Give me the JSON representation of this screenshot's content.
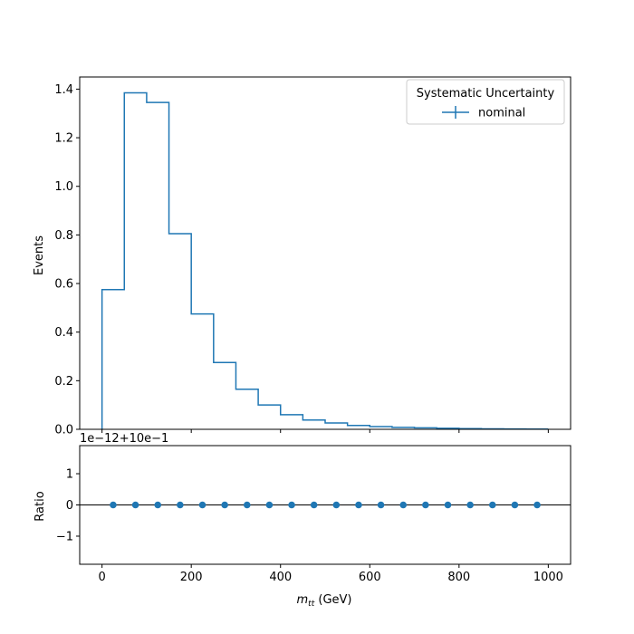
{
  "chart_data": [
    {
      "type": "line",
      "subtype": "step-histogram",
      "ylabel": "Events",
      "xlim": [
        -50,
        1050
      ],
      "ylim": [
        0,
        1.45
      ],
      "x_ticks": [
        0,
        200,
        400,
        600,
        800,
        1000
      ],
      "y_ticks": [
        0.0,
        0.2,
        0.4,
        0.6,
        0.8,
        1.0,
        1.2,
        1.4
      ],
      "y_tick_labels": [
        "0.0",
        "0.2",
        "0.4",
        "0.6",
        "0.8",
        "1.0",
        "1.2",
        "1.4"
      ],
      "bin_edges": [
        0,
        50,
        100,
        150,
        200,
        250,
        300,
        350,
        400,
        450,
        500,
        550,
        600,
        650,
        700,
        750,
        800,
        850,
        900,
        950,
        1000
      ],
      "series": [
        {
          "name": "nominal",
          "color": "#1f77b4",
          "values": [
            0.575,
            1.385,
            1.345,
            0.805,
            0.475,
            0.275,
            0.165,
            0.1,
            0.06,
            0.038,
            0.026,
            0.016,
            0.011,
            0.008,
            0.006,
            0.004,
            0.003,
            0.002,
            0.0015,
            0.001
          ]
        }
      ],
      "legend": {
        "title": "Systematic Uncertainty",
        "position": "top-right"
      },
      "grid": false
    },
    {
      "type": "scatter",
      "xlabel": "m_tt (GeV)",
      "xlabel_main": "m",
      "xlabel_sub": "tt",
      "xlabel_unit": " (GeV)",
      "ylabel": "Ratio",
      "offset_text": "1e−12+10e−1",
      "xlim": [
        -50,
        1050
      ],
      "ylim": [
        -1.9,
        1.9
      ],
      "x_ticks": [
        0,
        200,
        400,
        600,
        800,
        1000
      ],
      "y_ticks": [
        -1,
        0,
        1
      ],
      "y_tick_labels": [
        "−1",
        "0",
        "1"
      ],
      "reference_line": 0,
      "series": [
        {
          "name": "nominal",
          "color": "#1f77b4",
          "x": [
            25,
            75,
            125,
            175,
            225,
            275,
            325,
            375,
            425,
            475,
            525,
            575,
            625,
            675,
            725,
            775,
            825,
            875,
            925,
            975
          ],
          "y": [
            0,
            0,
            0,
            0,
            0,
            0,
            0,
            0,
            0,
            0,
            0,
            0,
            0,
            0,
            0,
            0,
            0,
            0,
            0,
            0
          ]
        }
      ],
      "grid": false
    }
  ]
}
